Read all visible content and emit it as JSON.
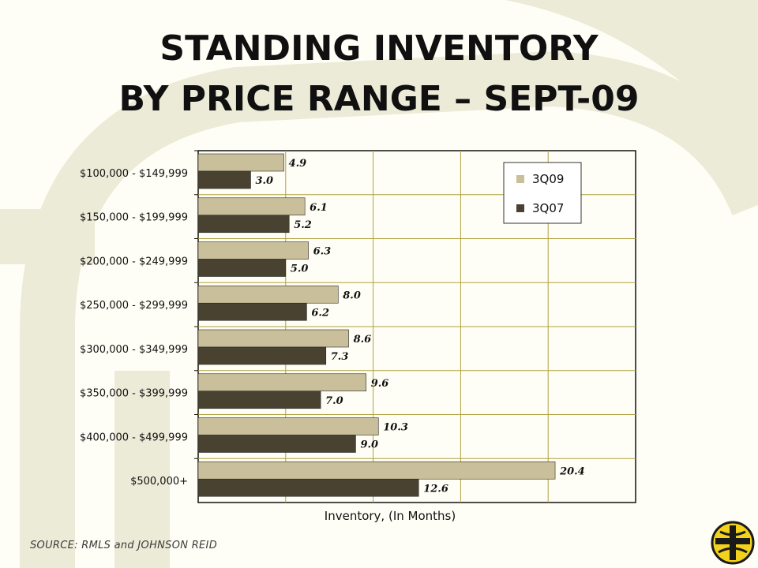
{
  "slide": {
    "title_line_1": "STANDING INVENTORY",
    "title_line_2": "BY PRICE RANGE – SEPT-09",
    "source": "SOURCE: RMLS and JOHNSON REID"
  },
  "colors": {
    "series_3q09": "#c9bf9a",
    "series_3q07": "#4a4230",
    "gridline": "#b0a040",
    "plot_background": "#fffef6",
    "watermark": "#ecebd8",
    "logo_yellow": "#f2d21c",
    "logo_dark": "#1a1a1a"
  },
  "icons": {
    "logo": "cross-shield-logo-icon"
  },
  "chart_data": {
    "type": "bar",
    "orientation": "horizontal",
    "categories": [
      "$100,000 - $149,999",
      "$150,000 - $199,999",
      "$200,000 - $249,999",
      "$250,000 - $299,999",
      "$300,000 - $349,999",
      "$350,000 - $399,999",
      "$400,000 - $499,999",
      "$500,000+"
    ],
    "series": [
      {
        "name": "3Q09",
        "values": [
          4.9,
          6.1,
          6.3,
          8.0,
          8.6,
          9.6,
          10.3,
          20.4
        ],
        "labels": [
          "4.9",
          "6.1",
          "6.3",
          "8.0",
          "8.6",
          "9.6",
          "10.3",
          "20.4"
        ]
      },
      {
        "name": "3Q07",
        "values": [
          3.0,
          5.2,
          5.0,
          6.2,
          7.3,
          7.0,
          9.0,
          12.6
        ],
        "labels": [
          "3.0",
          "5.2",
          "5.0",
          "6.2",
          "7.3",
          "7.0",
          "9.0",
          "12.6"
        ]
      }
    ],
    "xlabel": "Inventory, (In Months)",
    "ylabel": "",
    "xlim": [
      0,
      25
    ],
    "grid_step": 5,
    "grid": true,
    "x_tick_labels_shown": false,
    "legend_position": "top-right"
  }
}
